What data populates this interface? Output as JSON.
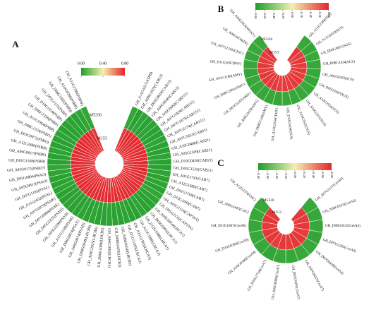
{
  "chart_data": [
    {
      "type": "circular-heatmap",
      "panel_label": "A",
      "categories": [
        "GH_A11G3327(ATPB)",
        "GH_A09G1023(CAB13)",
        "GH_D03G0824(CAB13)",
        "GH_A06G0640(CAB13)",
        "GH_A05G0682(CAB151)",
        "GH_A07G1924(CAB151)",
        "GH_D07G1875(CAB151)",
        "GH_A07G2174(CAB151)",
        "GH_A07G1831(CAB21)",
        "GH_A10G0400(CAB21)",
        "GH_A05G1509(CAB21)",
        "GH_D10G0420(CAB21)",
        "GH_D05G1535(CAB21)",
        "GH_A01G1741(CAB7)",
        "GH_A12G1680(CAB7)",
        "GH_D01G1768(CAB7)",
        "GH_D12G1682(CAB7)",
        "GH_A05G2126(CAP10A)",
        "GH_D05G2135(CAP10A)",
        "GH_A05G0954(LHCA1)",
        "GH_D05G0991(LHCA1)",
        "GH_D12G1980(LHCA1)",
        "GH_A12G1980(LHCA3)",
        "GH_A11G1565(LHCA3)",
        "GH_D11G1595(LHCA3)",
        "GH_A08G0450(LHCB3)",
        "GH_D08G0478(LHCB3)",
        "GH_A06G1062(LHCB5)",
        "GH_D06G1088(LHCB5)",
        "GH_A08G2025(LHCB6)",
        "GH_D08G2048(LHCB6)",
        "GH_A06G0874(PSAD)",
        "GH_D06G0874(PSAE)",
        "GH_A11G1128(PSAE)",
        "GH_A05G2200(PSAH)",
        "GH_D05G2225(PSAH)",
        "GH_D07G0999(PSAK)",
        "GH_A07G0970(PSAK)",
        "GH_A11G2452(PSAL)",
        "GH_D07G1195(PSAL)",
        "GH_A05G0811(PSAO)",
        "GH_D05G0804(PSAO)",
        "GH_A01G0171(PSB27)",
        "GH_D01G1168(PSBB)",
        "GH_A09G0617(PSBB)",
        "GH_A12G2486(PSBB)",
        "GH_D03G0873(PSBO)",
        "GH_D08G1324(PSBO)",
        "GH_A11G1964(PSBP)",
        "GH_D06G1258(PSBP)",
        "GH_D10G1359(PSBP)",
        "GH_D05G1135(PSBP)",
        "GH_D06G1305(PSBQ)",
        "GH_A10G0580(PSBR)",
        "GH_A11G2709(PSBW)"
      ],
      "series": [
        {
          "name": "M5330",
          "values": [
            0.04,
            0.02,
            0.03,
            0.02,
            0.03,
            0.02,
            0.02,
            0.03,
            0.02,
            0.02,
            0.03,
            0.02,
            0.02,
            0.03,
            0.02,
            0.03,
            0.02,
            0.04,
            0.03,
            0.02,
            0.02,
            0.03,
            0.02,
            0.02,
            0.03,
            0.02,
            0.02,
            0.03,
            0.02,
            0.02,
            0.03,
            0.02,
            0.03,
            0.02,
            0.02,
            0.03,
            0.02,
            0.02,
            0.03,
            0.02,
            0.02,
            0.03,
            0.04,
            0.02,
            0.02,
            0.03,
            0.02,
            0.02,
            0.03,
            0.02,
            0.02,
            0.03,
            0.02,
            0.03,
            0.04
          ]
        },
        {
          "name": "M153",
          "values": [
            0.76,
            0.78,
            0.79,
            0.78,
            0.79,
            0.78,
            0.79,
            0.78,
            0.79,
            0.78,
            0.78,
            0.79,
            0.78,
            0.79,
            0.78,
            0.78,
            0.79,
            0.77,
            0.78,
            0.79,
            0.78,
            0.78,
            0.79,
            0.78,
            0.78,
            0.79,
            0.78,
            0.79,
            0.78,
            0.78,
            0.79,
            0.78,
            0.78,
            0.79,
            0.78,
            0.78,
            0.79,
            0.78,
            0.78,
            0.79,
            0.78,
            0.78,
            0.77,
            0.79,
            0.78,
            0.78,
            0.79,
            0.78,
            0.78,
            0.79,
            0.78,
            0.78,
            0.79,
            0.78,
            0.76
          ]
        }
      ],
      "colorbar": {
        "lim": [
          0,
          0.8
        ],
        "colors": [
          "#1e9e2a",
          "#f4f0b0",
          "#e3242b"
        ],
        "ticks": [
          {
            "value": 0,
            "label": "0.00"
          },
          {
            "value": 0.4,
            "label": "0.40"
          },
          {
            "value": 0.8,
            "label": "0.80"
          }
        ]
      }
    },
    {
      "type": "circular-heatmap",
      "panel_label": "B",
      "categories": [
        "GH_A11G2184(SUS)",
        "GH_A11G0433(SUS)",
        "GH_D06G0851(SUS)",
        "GH_D08G1434(SUS)",
        "GH_A05G0365(SUS)",
        "GH_D05G0367(SUS)",
        "GH_A10G2556(SUS)",
        "GH_A10G2551(SUS)",
        "GH_A10G2525(SUS)",
        "GH_D10G2434(SUS)",
        "GH_A12G2554(AMY)",
        "GH_D08G1246(AMY)",
        "GH_A08G2020(AMY)",
        "GH_D01G1247(AMY)",
        "GH_D08G2061(AMY)",
        "GH_A01G1180(AMY)",
        "GH_D11G2097(INV)",
        "GH_A07G2210(GIGC)",
        "GH_A06G0039(FK)",
        "GH_A06G2024(WAXY)"
      ],
      "series": [
        {
          "name": "M5330",
          "values": [
            -0.7,
            -0.72,
            -0.7,
            -0.71,
            -0.7,
            -0.72,
            -0.7,
            -0.7,
            -0.71,
            -0.7,
            -0.72,
            -0.7,
            -0.71,
            -0.7,
            -0.7,
            -0.72,
            -0.7,
            -0.71,
            -0.7,
            -0.7
          ]
        },
        {
          "name": "M153",
          "values": [
            0.72,
            0.7,
            0.72,
            0.71,
            0.72,
            0.7,
            0.72,
            0.72,
            0.71,
            0.72,
            0.7,
            0.72,
            0.71,
            0.72,
            0.72,
            0.7,
            0.72,
            0.71,
            0.72,
            0.72
          ]
        }
      ],
      "colorbar": {
        "lim": [
          -0.8,
          0.8
        ],
        "colors": [
          "#1e9e2a",
          "#f4f0b0",
          "#e3242b"
        ],
        "ticks": [
          {
            "value": -0.8,
            "label": "-0.80"
          },
          {
            "value": -0.6,
            "label": "-0.60"
          },
          {
            "value": -0.4,
            "label": "-0.40"
          },
          {
            "value": -0.2,
            "label": "-0.20"
          },
          {
            "value": 0,
            "label": "0.00"
          },
          {
            "value": 0.2,
            "label": "0.20"
          },
          {
            "value": 0.4,
            "label": "0.40"
          },
          {
            "value": 0.6,
            "label": "0.60"
          },
          {
            "value": 0.8,
            "label": "0.80"
          }
        ]
      }
    },
    {
      "type": "circular-heatmap",
      "panel_label": "C",
      "categories": [
        "GH_A07G2117(CesA4)",
        "GH_A08G0515(CesA4)",
        "GH_D08G0525(CesA4)",
        "GH_D07G2262(CesA4)",
        "GH_D07G0439(CesA4)",
        "GH_A07G0637(CesA7)",
        "GH_D05G0091(CesA7)",
        "GH_A05G0089(CesA7)",
        "GH_D05G1754(CesA7)",
        "GH_A10G0360(CesA8)",
        "GH_D10G0384(CesA8)",
        "GH_D13G1867(CesA6)",
        "GH_A09G2447(CslG)",
        "GH_A12G2574(CslC)"
      ],
      "series": [
        {
          "name": "M5330",
          "values": [
            -0.7,
            -0.71,
            -0.7,
            -0.72,
            -0.7,
            -0.7,
            -0.71,
            -0.7,
            -0.72,
            -0.7,
            -0.7,
            -0.71,
            -0.7,
            -0.7
          ]
        },
        {
          "name": "M153",
          "values": [
            0.72,
            0.71,
            0.72,
            0.7,
            0.72,
            0.72,
            0.71,
            0.72,
            0.7,
            0.72,
            0.72,
            0.71,
            0.72,
            0.72
          ]
        }
      ],
      "colorbar": {
        "lim": [
          -0.8,
          0.8
        ],
        "colors": [
          "#1e9e2a",
          "#f4f0b0",
          "#e3242b"
        ],
        "ticks": [
          {
            "value": -0.8,
            "label": "-0.80"
          },
          {
            "value": -0.6,
            "label": "-0.60"
          },
          {
            "value": -0.4,
            "label": "-0.40"
          },
          {
            "value": -0.2,
            "label": "-0.20"
          },
          {
            "value": 0,
            "label": "0.00"
          },
          {
            "value": 0.2,
            "label": "0.20"
          },
          {
            "value": 0.4,
            "label": "0.40"
          },
          {
            "value": 0.6,
            "label": "0.60"
          },
          {
            "value": 0.8,
            "label": "0.80"
          }
        ]
      }
    }
  ]
}
